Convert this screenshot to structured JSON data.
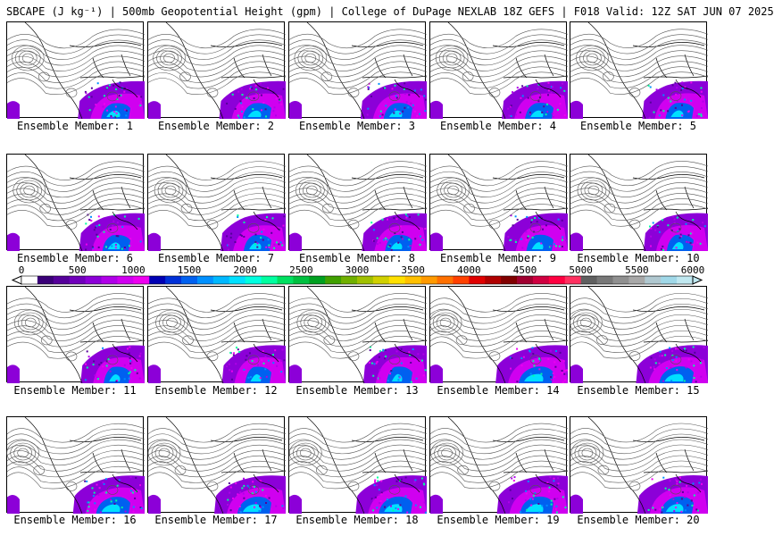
{
  "title": "SBCAPE (J kg⁻¹) | 500mb Geopotential Height (gpm) | College of DuPage NEXLAB 18Z GEFS | F018 Valid: 12Z SAT JUN 07 2025",
  "members": [
    "Ensemble Member: 1",
    "Ensemble Member: 2",
    "Ensemble Member: 3",
    "Ensemble Member: 4",
    "Ensemble Member: 5",
    "Ensemble Member: 6",
    "Ensemble Member: 7",
    "Ensemble Member: 8",
    "Ensemble Member: 9",
    "Ensemble Member: 10",
    "Ensemble Member: 11",
    "Ensemble Member: 12",
    "Ensemble Member: 13",
    "Ensemble Member: 14",
    "Ensemble Member: 15",
    "Ensemble Member: 16",
    "Ensemble Member: 17",
    "Ensemble Member: 18",
    "Ensemble Member: 19",
    "Ensemble Member: 20"
  ],
  "colorbar": {
    "ticks": [
      "0",
      "500",
      "1000",
      "1500",
      "2000",
      "2500",
      "3000",
      "3500",
      "4000",
      "4500",
      "5000",
      "5500",
      "6000"
    ],
    "colors": [
      "#ffffff",
      "#3a0078",
      "#55009a",
      "#7000bb",
      "#8c00d8",
      "#b000e8",
      "#d000f0",
      "#ee00f0",
      "#0000b4",
      "#0030d8",
      "#0060f0",
      "#0090ff",
      "#00b8ff",
      "#00e0ff",
      "#00ffe0",
      "#00ffa0",
      "#00e060",
      "#00c040",
      "#00a020",
      "#40a000",
      "#70b000",
      "#a0c000",
      "#d0d000",
      "#ffe000",
      "#ffc000",
      "#ff9a00",
      "#ff7000",
      "#ff4000",
      "#e00000",
      "#b00000",
      "#800000",
      "#a00030",
      "#d00040",
      "#ff0040",
      "#ff3060",
      "#606060",
      "#787878",
      "#909090",
      "#a8a8a8",
      "#b0c8d0",
      "#a0d8e8",
      "#c0e8f0"
    ]
  }
}
